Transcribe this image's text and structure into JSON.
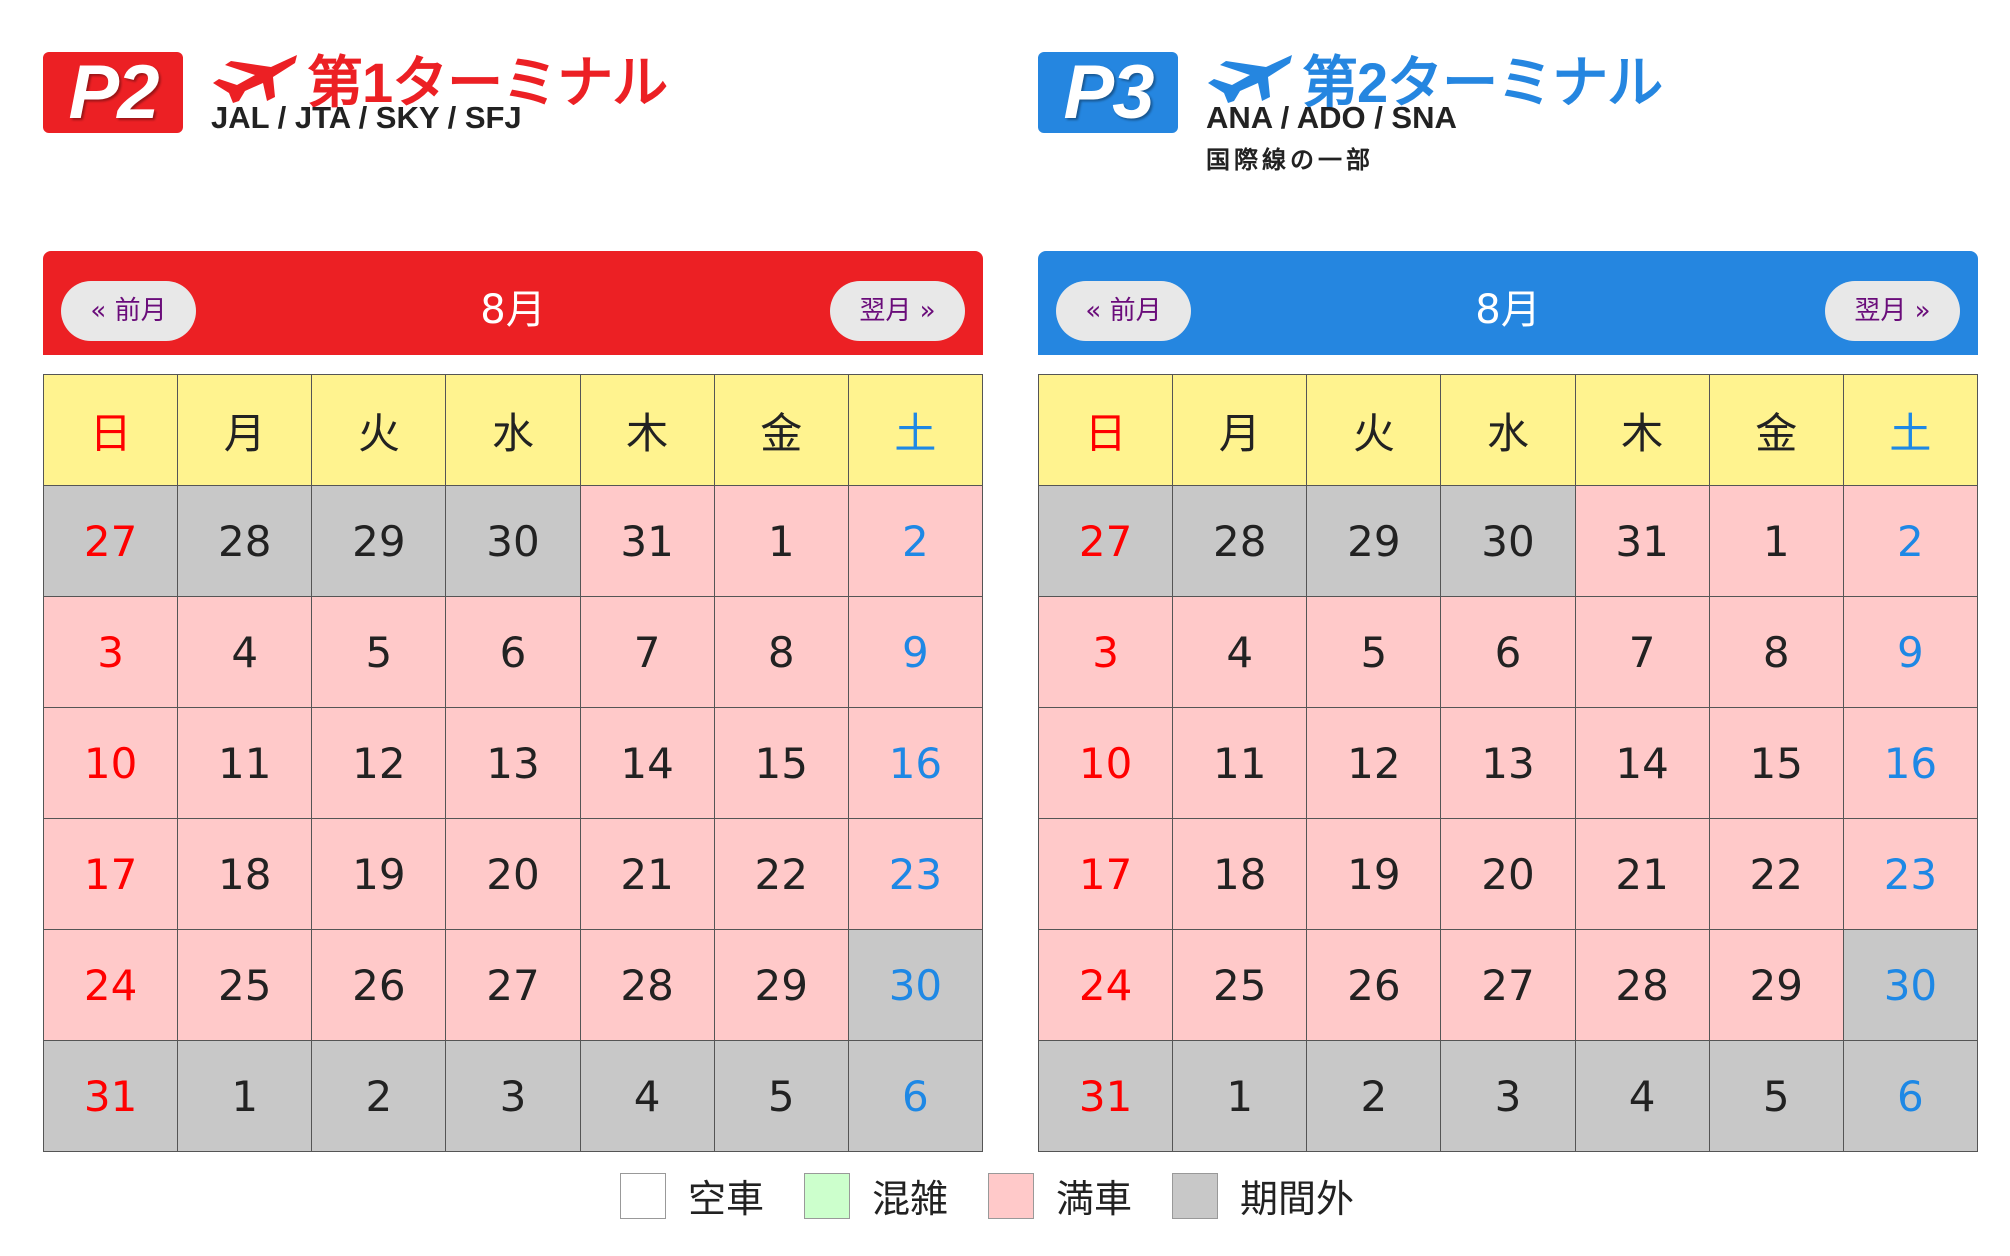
{
  "colors": {
    "empty": "#ffffff",
    "busy": "#ccffcc",
    "full": "#ffc9c9",
    "out": "#c8c8c8",
    "sunday": "#ff0000",
    "saturday": "#1e88e5",
    "header_yellow": "#fff38f"
  },
  "weekdays": [
    "日",
    "月",
    "火",
    "水",
    "木",
    "金",
    "土"
  ],
  "terminals": [
    {
      "logo": "P2",
      "accent": "#ec2024",
      "plane_icon": "airplane-icon",
      "title": "第1ターミナル",
      "airlines": "JAL / JTA / SKY / SFJ",
      "note": "",
      "calendar": {
        "month": "8月",
        "prev_label": "« 前月",
        "next_label": "翌月 »",
        "weeks": [
          [
            {
              "d": "27",
              "s": "out"
            },
            {
              "d": "28",
              "s": "out"
            },
            {
              "d": "29",
              "s": "out"
            },
            {
              "d": "30",
              "s": "out"
            },
            {
              "d": "31",
              "s": "full"
            },
            {
              "d": "1",
              "s": "full"
            },
            {
              "d": "2",
              "s": "full"
            }
          ],
          [
            {
              "d": "3",
              "s": "full"
            },
            {
              "d": "4",
              "s": "full"
            },
            {
              "d": "5",
              "s": "full"
            },
            {
              "d": "6",
              "s": "full"
            },
            {
              "d": "7",
              "s": "full"
            },
            {
              "d": "8",
              "s": "full"
            },
            {
              "d": "9",
              "s": "full"
            }
          ],
          [
            {
              "d": "10",
              "s": "full"
            },
            {
              "d": "11",
              "s": "full"
            },
            {
              "d": "12",
              "s": "full"
            },
            {
              "d": "13",
              "s": "full"
            },
            {
              "d": "14",
              "s": "full"
            },
            {
              "d": "15",
              "s": "full"
            },
            {
              "d": "16",
              "s": "full"
            }
          ],
          [
            {
              "d": "17",
              "s": "full"
            },
            {
              "d": "18",
              "s": "full"
            },
            {
              "d": "19",
              "s": "full"
            },
            {
              "d": "20",
              "s": "full"
            },
            {
              "d": "21",
              "s": "full"
            },
            {
              "d": "22",
              "s": "full"
            },
            {
              "d": "23",
              "s": "full"
            }
          ],
          [
            {
              "d": "24",
              "s": "full"
            },
            {
              "d": "25",
              "s": "full"
            },
            {
              "d": "26",
              "s": "full"
            },
            {
              "d": "27",
              "s": "full"
            },
            {
              "d": "28",
              "s": "full"
            },
            {
              "d": "29",
              "s": "full"
            },
            {
              "d": "30",
              "s": "out"
            }
          ],
          [
            {
              "d": "31",
              "s": "out"
            },
            {
              "d": "1",
              "s": "out"
            },
            {
              "d": "2",
              "s": "out"
            },
            {
              "d": "3",
              "s": "out"
            },
            {
              "d": "4",
              "s": "out"
            },
            {
              "d": "5",
              "s": "out"
            },
            {
              "d": "6",
              "s": "out"
            }
          ]
        ]
      }
    },
    {
      "logo": "P3",
      "accent": "#2586e0",
      "plane_icon": "airplane-icon",
      "title": "第2ターミナル",
      "airlines": "ANA / ADO / SNA",
      "note": "国際線の一部",
      "calendar": {
        "month": "8月",
        "prev_label": "« 前月",
        "next_label": "翌月 »",
        "weeks": [
          [
            {
              "d": "27",
              "s": "out"
            },
            {
              "d": "28",
              "s": "out"
            },
            {
              "d": "29",
              "s": "out"
            },
            {
              "d": "30",
              "s": "out"
            },
            {
              "d": "31",
              "s": "full"
            },
            {
              "d": "1",
              "s": "full"
            },
            {
              "d": "2",
              "s": "full"
            }
          ],
          [
            {
              "d": "3",
              "s": "full"
            },
            {
              "d": "4",
              "s": "full"
            },
            {
              "d": "5",
              "s": "full"
            },
            {
              "d": "6",
              "s": "full"
            },
            {
              "d": "7",
              "s": "full"
            },
            {
              "d": "8",
              "s": "full"
            },
            {
              "d": "9",
              "s": "full"
            }
          ],
          [
            {
              "d": "10",
              "s": "full"
            },
            {
              "d": "11",
              "s": "full"
            },
            {
              "d": "12",
              "s": "full"
            },
            {
              "d": "13",
              "s": "full"
            },
            {
              "d": "14",
              "s": "full"
            },
            {
              "d": "15",
              "s": "full"
            },
            {
              "d": "16",
              "s": "full"
            }
          ],
          [
            {
              "d": "17",
              "s": "full"
            },
            {
              "d": "18",
              "s": "full"
            },
            {
              "d": "19",
              "s": "full"
            },
            {
              "d": "20",
              "s": "full"
            },
            {
              "d": "21",
              "s": "full"
            },
            {
              "d": "22",
              "s": "full"
            },
            {
              "d": "23",
              "s": "full"
            }
          ],
          [
            {
              "d": "24",
              "s": "full"
            },
            {
              "d": "25",
              "s": "full"
            },
            {
              "d": "26",
              "s": "full"
            },
            {
              "d": "27",
              "s": "full"
            },
            {
              "d": "28",
              "s": "full"
            },
            {
              "d": "29",
              "s": "full"
            },
            {
              "d": "30",
              "s": "out"
            }
          ],
          [
            {
              "d": "31",
              "s": "out"
            },
            {
              "d": "1",
              "s": "out"
            },
            {
              "d": "2",
              "s": "out"
            },
            {
              "d": "3",
              "s": "out"
            },
            {
              "d": "4",
              "s": "out"
            },
            {
              "d": "5",
              "s": "out"
            },
            {
              "d": "6",
              "s": "out"
            }
          ]
        ]
      }
    }
  ],
  "legend": [
    {
      "label": "空車",
      "status": "empty"
    },
    {
      "label": "混雑",
      "status": "busy"
    },
    {
      "label": "満車",
      "status": "full"
    },
    {
      "label": "期間外",
      "status": "out"
    }
  ]
}
